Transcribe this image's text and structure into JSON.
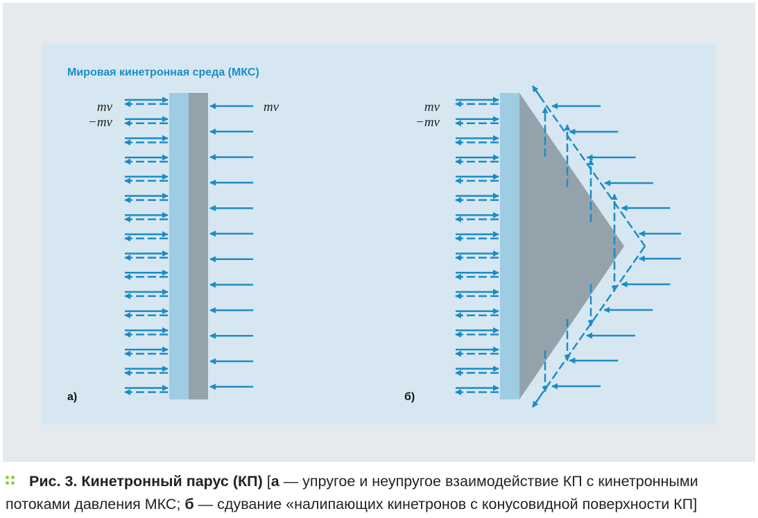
{
  "figure": {
    "heading": "Мировая кинетронная среда (МКС)",
    "mv_label": "mv",
    "neg_mv_label": "−mv",
    "panel_a_label": "а)",
    "panel_b_label": "б)",
    "colors": {
      "arrow": "#1a8cc6",
      "sail_light": "#9ecde3",
      "sail_dark": "#94a3ab",
      "panel_bg": "#d7e7f1",
      "heading": "#1a8cc6"
    }
  },
  "caption": {
    "fig_number": "Рис. 3.",
    "fig_title": "Кинетронный парус (КП)",
    "bracket_open": "[",
    "part_a_letter": "а",
    "part_a_text": "— упругое и неупругое взаимодействие КП с кинетронными потоками давления МКС;",
    "part_b_letter": "б",
    "part_b_text": "— сдувание «налипающих кинетронов с конусовидной поверхности КП",
    "bracket_close": "]"
  }
}
